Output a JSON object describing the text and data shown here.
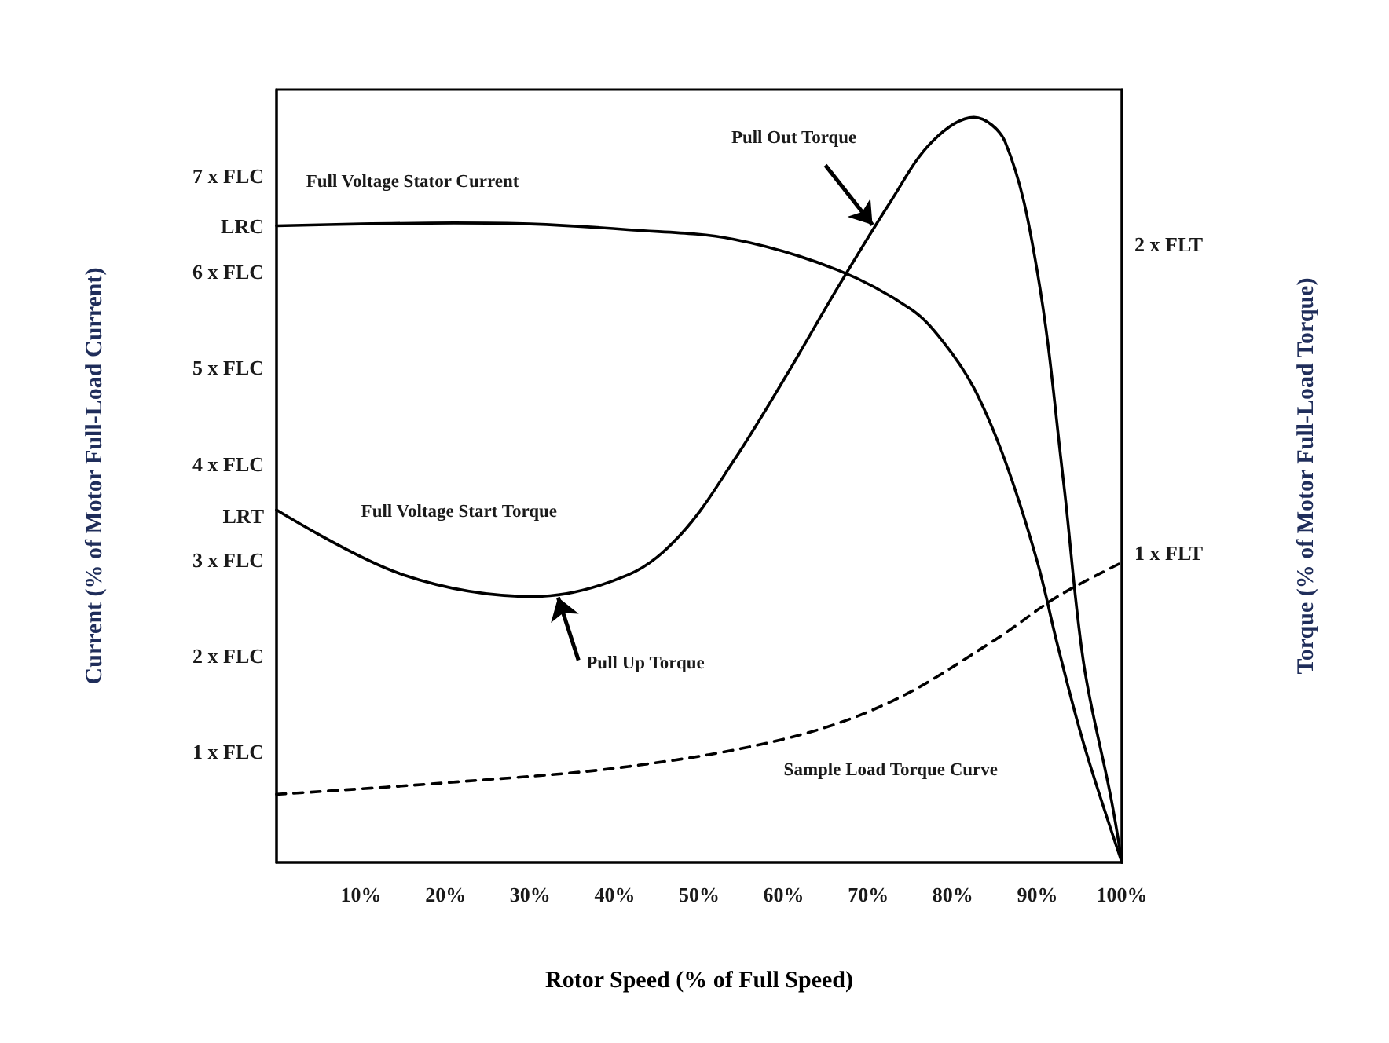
{
  "chart_data": {
    "type": "line",
    "xlabel": "Rotor Speed (% of Full Speed)",
    "ylabel": "Current (% of Motor Full-Load Current)",
    "y2label": "Torque (% of Motor Full-Load Torque)",
    "xlim": [
      0,
      100
    ],
    "xticks": [
      {
        "value": 10,
        "label": "10%"
      },
      {
        "value": 20,
        "label": "20%"
      },
      {
        "value": 30,
        "label": "30%"
      },
      {
        "value": 40,
        "label": "40%"
      },
      {
        "value": 50,
        "label": "50%"
      },
      {
        "value": 60,
        "label": "60%"
      },
      {
        "value": 70,
        "label": "70%"
      },
      {
        "value": 80,
        "label": "80%"
      },
      {
        "value": 90,
        "label": "90%"
      },
      {
        "value": 100,
        "label": "100%"
      }
    ],
    "ylim": [
      -0.15,
      7.9
    ],
    "yticks": [
      {
        "value": 1,
        "label": "1 x FLC"
      },
      {
        "value": 2,
        "label": "2 x FLC"
      },
      {
        "value": 3,
        "label": "3 x FLC"
      },
      {
        "value": 3.46,
        "label": "LRT"
      },
      {
        "value": 4,
        "label": "4 x FLC"
      },
      {
        "value": 5,
        "label": "5 x FLC"
      },
      {
        "value": 6,
        "label": "6 x FLC"
      },
      {
        "value": 6.48,
        "label": "LRC"
      },
      {
        "value": 7,
        "label": "7 x FLC"
      }
    ],
    "y2lim": [
      0,
      2.5
    ],
    "y2ticks": [
      {
        "value": 1,
        "label": "1 x FLT"
      },
      {
        "value": 2,
        "label": "2 x FLT"
      }
    ],
    "series": [
      {
        "name": "Full Voltage Stator Current",
        "color": "#000000",
        "line_style": "solid",
        "x": [
          0,
          10,
          21,
          30,
          41.6,
          54.1,
          66.4,
          75.1,
          78.8,
          82.5,
          86.2,
          90,
          92.4,
          95.5,
          100
        ],
        "values": [
          6.48,
          6.5,
          6.51,
          6.5,
          6.44,
          6.34,
          6.02,
          5.61,
          5.28,
          4.79,
          4.03,
          2.98,
          2.11,
          1.08,
          -0.15
        ]
      },
      {
        "name": "Full Voltage Start Torque",
        "axis": "y2",
        "color": "#000000",
        "line_style": "solid",
        "x": [
          0,
          15,
          30.5,
          41.6,
          47.8,
          54.1,
          60.2,
          66.4,
          72.7,
          77.5,
          82.5,
          86.2,
          90,
          93.1,
          95.5,
          98.7,
          100
        ],
        "values": [
          1.14,
          0.93,
          0.86,
          0.93,
          1.06,
          1.3,
          1.57,
          1.86,
          2.14,
          2.33,
          2.41,
          2.33,
          1.91,
          1.23,
          0.64,
          0.21,
          0
        ]
      },
      {
        "name": "Sample Load Torque Curve",
        "axis": "y2",
        "color": "#000000",
        "line_style": "dashed",
        "x": [
          0,
          21.2,
          41.6,
          60.2,
          72.7,
          85,
          92.4,
          100
        ],
        "values": [
          0.22,
          0.26,
          0.31,
          0.4,
          0.52,
          0.72,
          0.86,
          0.97
        ]
      }
    ],
    "annotations": [
      {
        "text": "Pull Out Torque",
        "x": 70.5,
        "y": 6.49
      },
      {
        "text": "Pull Up Torque",
        "x": 33.3,
        "y": 2.61
      }
    ],
    "marker": "none",
    "grid": false,
    "legend": false
  }
}
